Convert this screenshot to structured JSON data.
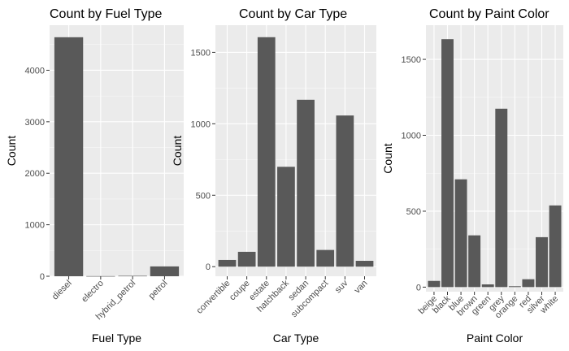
{
  "chart_data": [
    {
      "type": "bar",
      "title": "Count by Fuel Type",
      "xlabel": "Fuel Type",
      "ylabel": "Count",
      "categories": [
        "diesel",
        "electro",
        "hybrid_petrol",
        "petrol"
      ],
      "values": [
        4641,
        3,
        8,
        191
      ],
      "ylim": [
        0,
        4875
      ],
      "yticks": [
        0,
        1000,
        2000,
        3000,
        4000
      ],
      "grid": true,
      "bar_color": "#595959",
      "panel_color": "#ebebeb"
    },
    {
      "type": "bar",
      "title": "Count by Car Type",
      "xlabel": "Car Type",
      "ylabel": "Count",
      "categories": [
        "convertible",
        "coupe",
        "estate",
        "hatchback",
        "sedan",
        "subcompact",
        "suv",
        "van"
      ],
      "values": [
        47,
        104,
        1606,
        699,
        1168,
        117,
        1058,
        41
      ],
      "ylim": [
        -67,
        1690
      ],
      "yticks": [
        0,
        500,
        1000,
        1500
      ],
      "grid": true,
      "bar_color": "#595959",
      "panel_color": "#ebebeb"
    },
    {
      "type": "bar",
      "title": "Count by Paint Color",
      "xlabel": "Paint Color",
      "ylabel": "Count",
      "categories": [
        "beige",
        "black",
        "blue",
        "brown",
        "green",
        "grey",
        "orange",
        "red",
        "silver",
        "white"
      ],
      "values": [
        41,
        1633,
        710,
        341,
        18,
        1175,
        6,
        52,
        329,
        538
      ],
      "ylim": [
        -30,
        1725
      ],
      "yticks": [
        0,
        500,
        1000,
        1500
      ],
      "grid": true,
      "bar_color": "#595959",
      "panel_color": "#ebebeb"
    }
  ]
}
